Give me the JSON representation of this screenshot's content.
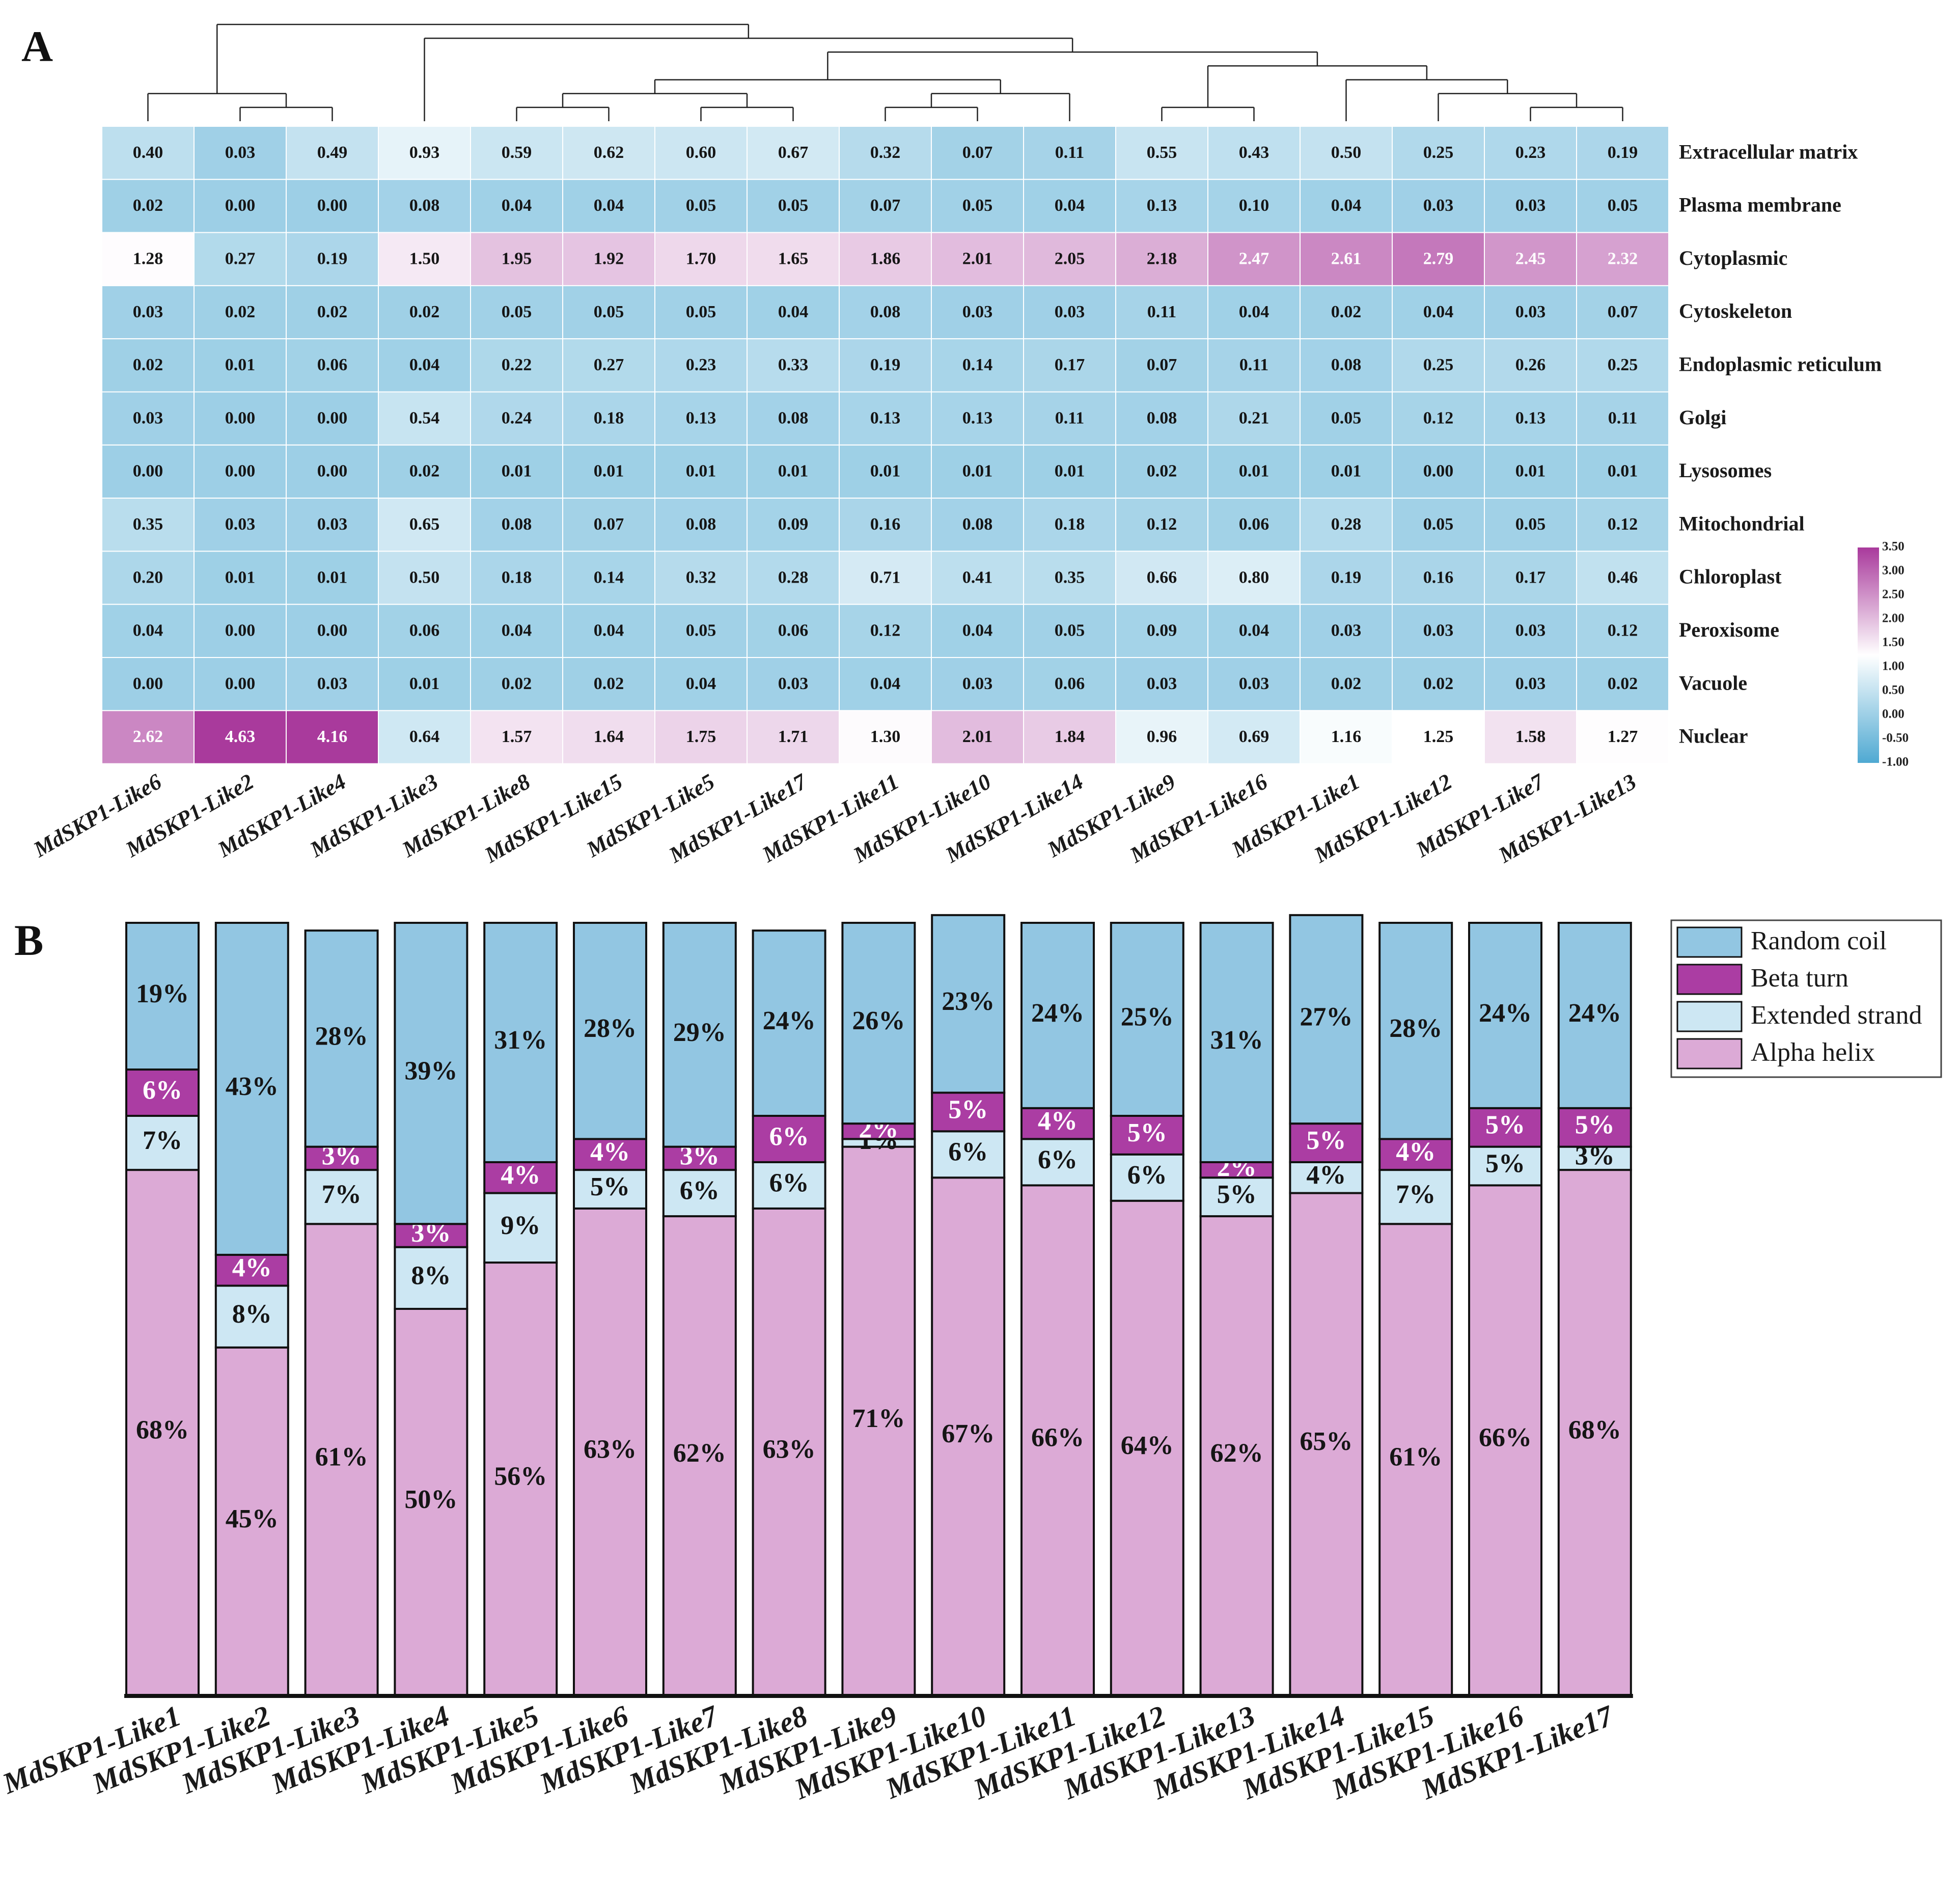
{
  "panel_a_label": "A",
  "panel_b_label": "B",
  "chart_data": [
    {
      "type": "heatmap",
      "title": "",
      "rows": [
        "Extracellular matrix",
        "Plasma membrane",
        "Cytoplasmic",
        "Cytoskeleton",
        "Endoplasmic reticulum",
        "Golgi",
        "Lysosomes",
        "Mitochondrial",
        "Chloroplast",
        "Peroxisome",
        "Vacuole",
        "Nuclear"
      ],
      "columns": [
        "MdSKP1-Like6",
        "MdSKP1-Like2",
        "MdSKP1-Like4",
        "MdSKP1-Like3",
        "MdSKP1-Like8",
        "MdSKP1-Like15",
        "MdSKP1-Like5",
        "MdSKP1-Like17",
        "MdSKP1-Like11",
        "MdSKP1-Like10",
        "MdSKP1-Like14",
        "MdSKP1-Like9",
        "MdSKP1-Like16",
        "MdSKP1-Like1",
        "MdSKP1-Like12",
        "MdSKP1-Like7",
        "MdSKP1-Like13"
      ],
      "values": [
        [
          "0.40",
          "0.03",
          "0.49",
          "0.93",
          "0.59",
          "0.62",
          "0.60",
          "0.67",
          "0.32",
          "0.07",
          "0.11",
          "0.55",
          "0.43",
          "0.50",
          "0.25",
          "0.23",
          "0.19"
        ],
        [
          "0.02",
          "0.00",
          "0.00",
          "0.08",
          "0.04",
          "0.04",
          "0.05",
          "0.05",
          "0.07",
          "0.05",
          "0.04",
          "0.13",
          "0.10",
          "0.04",
          "0.03",
          "0.03",
          "0.05"
        ],
        [
          "1.28",
          "0.27",
          "0.19",
          "1.50",
          "1.95",
          "1.92",
          "1.70",
          "1.65",
          "1.86",
          "2.01",
          "2.05",
          "2.18",
          "2.47",
          "2.61",
          "2.79",
          "2.45",
          "2.32"
        ],
        [
          "0.03",
          "0.02",
          "0.02",
          "0.02",
          "0.05",
          "0.05",
          "0.05",
          "0.04",
          "0.08",
          "0.03",
          "0.03",
          "0.11",
          "0.04",
          "0.02",
          "0.04",
          "0.03",
          "0.07"
        ],
        [
          "0.02",
          "0.01",
          "0.06",
          "0.04",
          "0.22",
          "0.27",
          "0.23",
          "0.33",
          "0.19",
          "0.14",
          "0.17",
          "0.07",
          "0.11",
          "0.08",
          "0.25",
          "0.26",
          "0.25"
        ],
        [
          "0.03",
          "0.00",
          "0.00",
          "0.54",
          "0.24",
          "0.18",
          "0.13",
          "0.08",
          "0.13",
          "0.13",
          "0.11",
          "0.08",
          "0.21",
          "0.05",
          "0.12",
          "0.13",
          "0.11"
        ],
        [
          "0.00",
          "0.00",
          "0.00",
          "0.02",
          "0.01",
          "0.01",
          "0.01",
          "0.01",
          "0.01",
          "0.01",
          "0.01",
          "0.02",
          "0.01",
          "0.01",
          "0.00",
          "0.01",
          "0.01"
        ],
        [
          "0.35",
          "0.03",
          "0.03",
          "0.65",
          "0.08",
          "0.07",
          "0.08",
          "0.09",
          "0.16",
          "0.08",
          "0.18",
          "0.12",
          "0.06",
          "0.28",
          "0.05",
          "0.05",
          "0.12"
        ],
        [
          "0.20",
          "0.01",
          "0.01",
          "0.50",
          "0.18",
          "0.14",
          "0.32",
          "0.28",
          "0.71",
          "0.41",
          "0.35",
          "0.66",
          "0.80",
          "0.19",
          "0.16",
          "0.17",
          "0.46"
        ],
        [
          "0.04",
          "0.00",
          "0.00",
          "0.06",
          "0.04",
          "0.04",
          "0.05",
          "0.06",
          "0.12",
          "0.04",
          "0.05",
          "0.09",
          "0.04",
          "0.03",
          "0.03",
          "0.03",
          "0.12"
        ],
        [
          "0.00",
          "0.00",
          "0.03",
          "0.01",
          "0.02",
          "0.02",
          "0.04",
          "0.03",
          "0.04",
          "0.03",
          "0.06",
          "0.03",
          "0.03",
          "0.02",
          "0.02",
          "0.03",
          "0.02"
        ],
        [
          "2.62",
          "4.63",
          "4.16",
          "0.64",
          "1.57",
          "1.64",
          "1.75",
          "1.71",
          "1.30",
          "2.01",
          "1.84",
          "0.96",
          "0.69",
          "1.16",
          "1.25",
          "1.58",
          "1.27"
        ]
      ],
      "color_scale": {
        "min": -1.0,
        "max": 3.5,
        "ticks": [
          "3.50",
          "3.00",
          "2.50",
          "2.00",
          "1.50",
          "1.00",
          "0.50",
          "0.00",
          "-0.50",
          "-1.00"
        ],
        "low_color": "#4fa9d2",
        "mid_color": "#ffffff",
        "high_color": "#a93a9c"
      },
      "column_dendrogram": true
    },
    {
      "type": "bar",
      "stacked": true,
      "title": "",
      "categories": [
        "MdSKP1-Like1",
        "MdSKP1-Like2",
        "MdSKP1-Like3",
        "MdSKP1-Like4",
        "MdSKP1-Like5",
        "MdSKP1-Like6",
        "MdSKP1-Like7",
        "MdSKP1-Like8",
        "MdSKP1-Like9",
        "MdSKP1-Like10",
        "MdSKP1-Like11",
        "MdSKP1-Like12",
        "MdSKP1-Like13",
        "MdSKP1-Like14",
        "MdSKP1-Like15",
        "MdSKP1-Like16",
        "MdSKP1-Like17"
      ],
      "ylim": [
        0,
        100
      ],
      "legend_position": "top-right",
      "series": [
        {
          "name": "Alpha helix",
          "color": "#dcaad6",
          "values": [
            68,
            45,
            61,
            50,
            56,
            63,
            62,
            63,
            71,
            67,
            66,
            64,
            62,
            65,
            61,
            66,
            68
          ]
        },
        {
          "name": "Extended strand",
          "color": "#cde7f3",
          "values": [
            7,
            8,
            7,
            8,
            9,
            5,
            6,
            6,
            1,
            6,
            6,
            6,
            5,
            4,
            7,
            5,
            3
          ]
        },
        {
          "name": "Beta turn",
          "color": "#ab3da3",
          "values": [
            6,
            4,
            3,
            3,
            4,
            4,
            3,
            6,
            2,
            5,
            4,
            5,
            2,
            5,
            4,
            5,
            5
          ]
        },
        {
          "name": "Random coil",
          "color": "#92c6e2",
          "values": [
            19,
            43,
            28,
            39,
            31,
            28,
            29,
            24,
            26,
            23,
            24,
            25,
            31,
            27,
            28,
            24,
            24
          ]
        }
      ],
      "legend_order": [
        "Random coil",
        "Beta turn",
        "Extended strand",
        "Alpha helix"
      ]
    }
  ]
}
